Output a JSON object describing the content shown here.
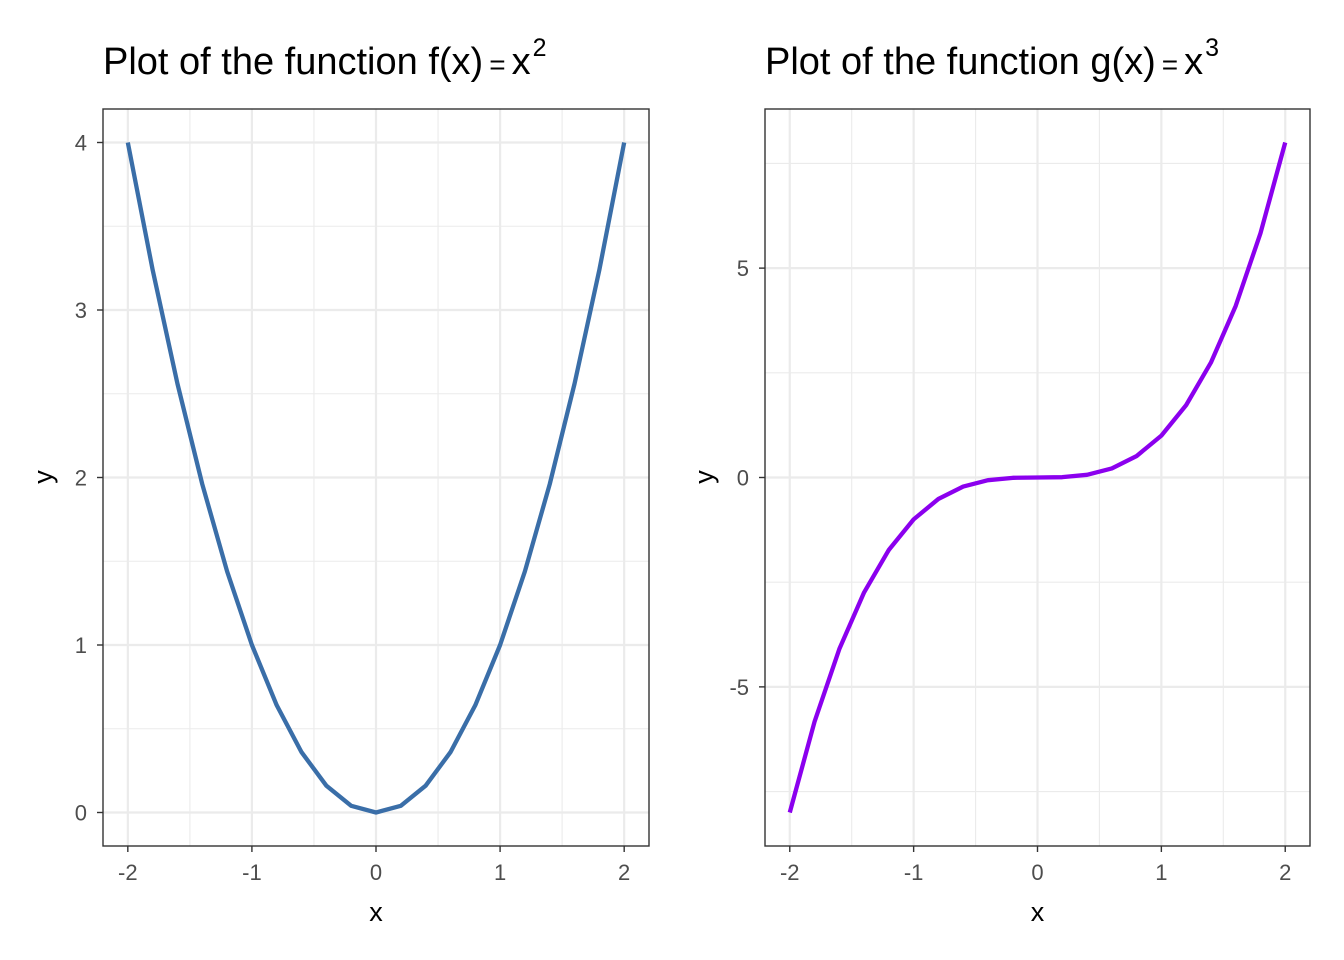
{
  "chart_data": [
    {
      "type": "line",
      "title": {
        "prefix": "Plot of the function ",
        "fname": "f",
        "arg": "x",
        "equals": "=",
        "base": "x",
        "exponent": "2"
      },
      "xlabel": "x",
      "ylabel": "y",
      "xlim": [
        -2.2,
        2.2
      ],
      "ylim": [
        -0.2,
        4.2
      ],
      "xticks": [
        -2,
        -1,
        0,
        1,
        2
      ],
      "xtick_labels": [
        "-2",
        "-1",
        "0",
        "1",
        "2"
      ],
      "yticks": [
        0,
        1,
        2,
        3,
        4
      ],
      "ytick_labels": [
        "0",
        "1",
        "2",
        "3",
        "4"
      ],
      "x_minor": [
        -1.5,
        -0.5,
        0.5,
        1.5
      ],
      "y_minor": [
        0.5,
        1.5,
        2.5,
        3.5
      ],
      "grid": true,
      "series": [
        {
          "name": "f(x) = x^2",
          "color": "#3a6ea8",
          "x": [
            -2.0,
            -1.8,
            -1.6,
            -1.4,
            -1.2,
            -1.0,
            -0.8,
            -0.6,
            -0.4,
            -0.2,
            0.0,
            0.2,
            0.4,
            0.6,
            0.8,
            1.0,
            1.2,
            1.4,
            1.6,
            1.8,
            2.0
          ],
          "y": [
            4.0,
            3.24,
            2.56,
            1.96,
            1.44,
            1.0,
            0.64,
            0.36,
            0.16,
            0.04,
            0.0,
            0.04,
            0.16,
            0.36,
            0.64,
            1.0,
            1.44,
            1.96,
            2.56,
            3.24,
            4.0
          ]
        }
      ]
    },
    {
      "type": "line",
      "title": {
        "prefix": "Plot of the function ",
        "fname": "g",
        "arg": "x",
        "equals": "=",
        "base": "x",
        "exponent": "3"
      },
      "xlabel": "x",
      "ylabel": "y",
      "xlim": [
        -2.2,
        2.2
      ],
      "ylim": [
        -8.8,
        8.8
      ],
      "xticks": [
        -2,
        -1,
        0,
        1,
        2
      ],
      "xtick_labels": [
        "-2",
        "-1",
        "0",
        "1",
        "2"
      ],
      "yticks": [
        -5,
        0,
        5
      ],
      "ytick_labels": [
        "-5",
        "0",
        "5"
      ],
      "x_minor": [
        -1.5,
        -0.5,
        0.5,
        1.5
      ],
      "y_minor": [
        -7.5,
        -2.5,
        2.5,
        7.5
      ],
      "grid": true,
      "series": [
        {
          "name": "g(x) = x^3",
          "color": "#8b00ee",
          "x": [
            -2.0,
            -1.8,
            -1.6,
            -1.4,
            -1.2,
            -1.0,
            -0.8,
            -0.6,
            -0.4,
            -0.2,
            0.0,
            0.2,
            0.4,
            0.6,
            0.8,
            1.0,
            1.2,
            1.4,
            1.6,
            1.8,
            2.0
          ],
          "y": [
            -8.0,
            -5.832,
            -4.096,
            -2.744,
            -1.728,
            -1.0,
            -0.512,
            -0.216,
            -0.064,
            -0.008,
            0.0,
            0.008,
            0.064,
            0.216,
            0.512,
            1.0,
            1.728,
            2.744,
            4.096,
            5.832,
            8.0
          ]
        }
      ]
    }
  ]
}
